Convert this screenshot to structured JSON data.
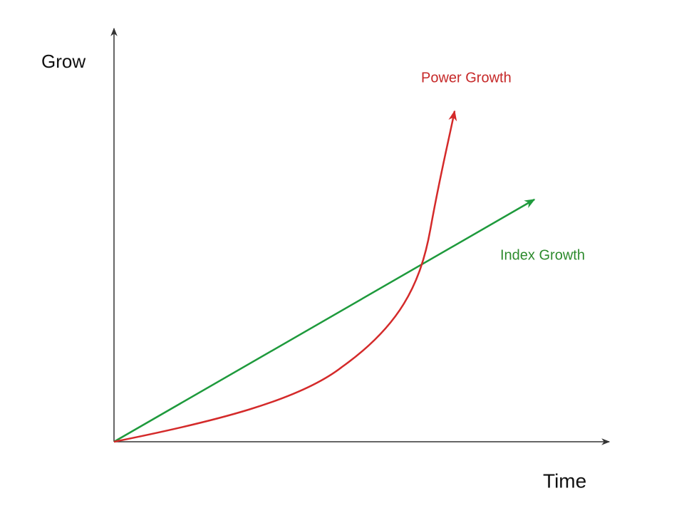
{
  "axes": {
    "y_label": "Grow",
    "x_label": "Time"
  },
  "curves": [
    {
      "label": "Power Growth"
    },
    {
      "label": "Index Growth"
    }
  ]
}
